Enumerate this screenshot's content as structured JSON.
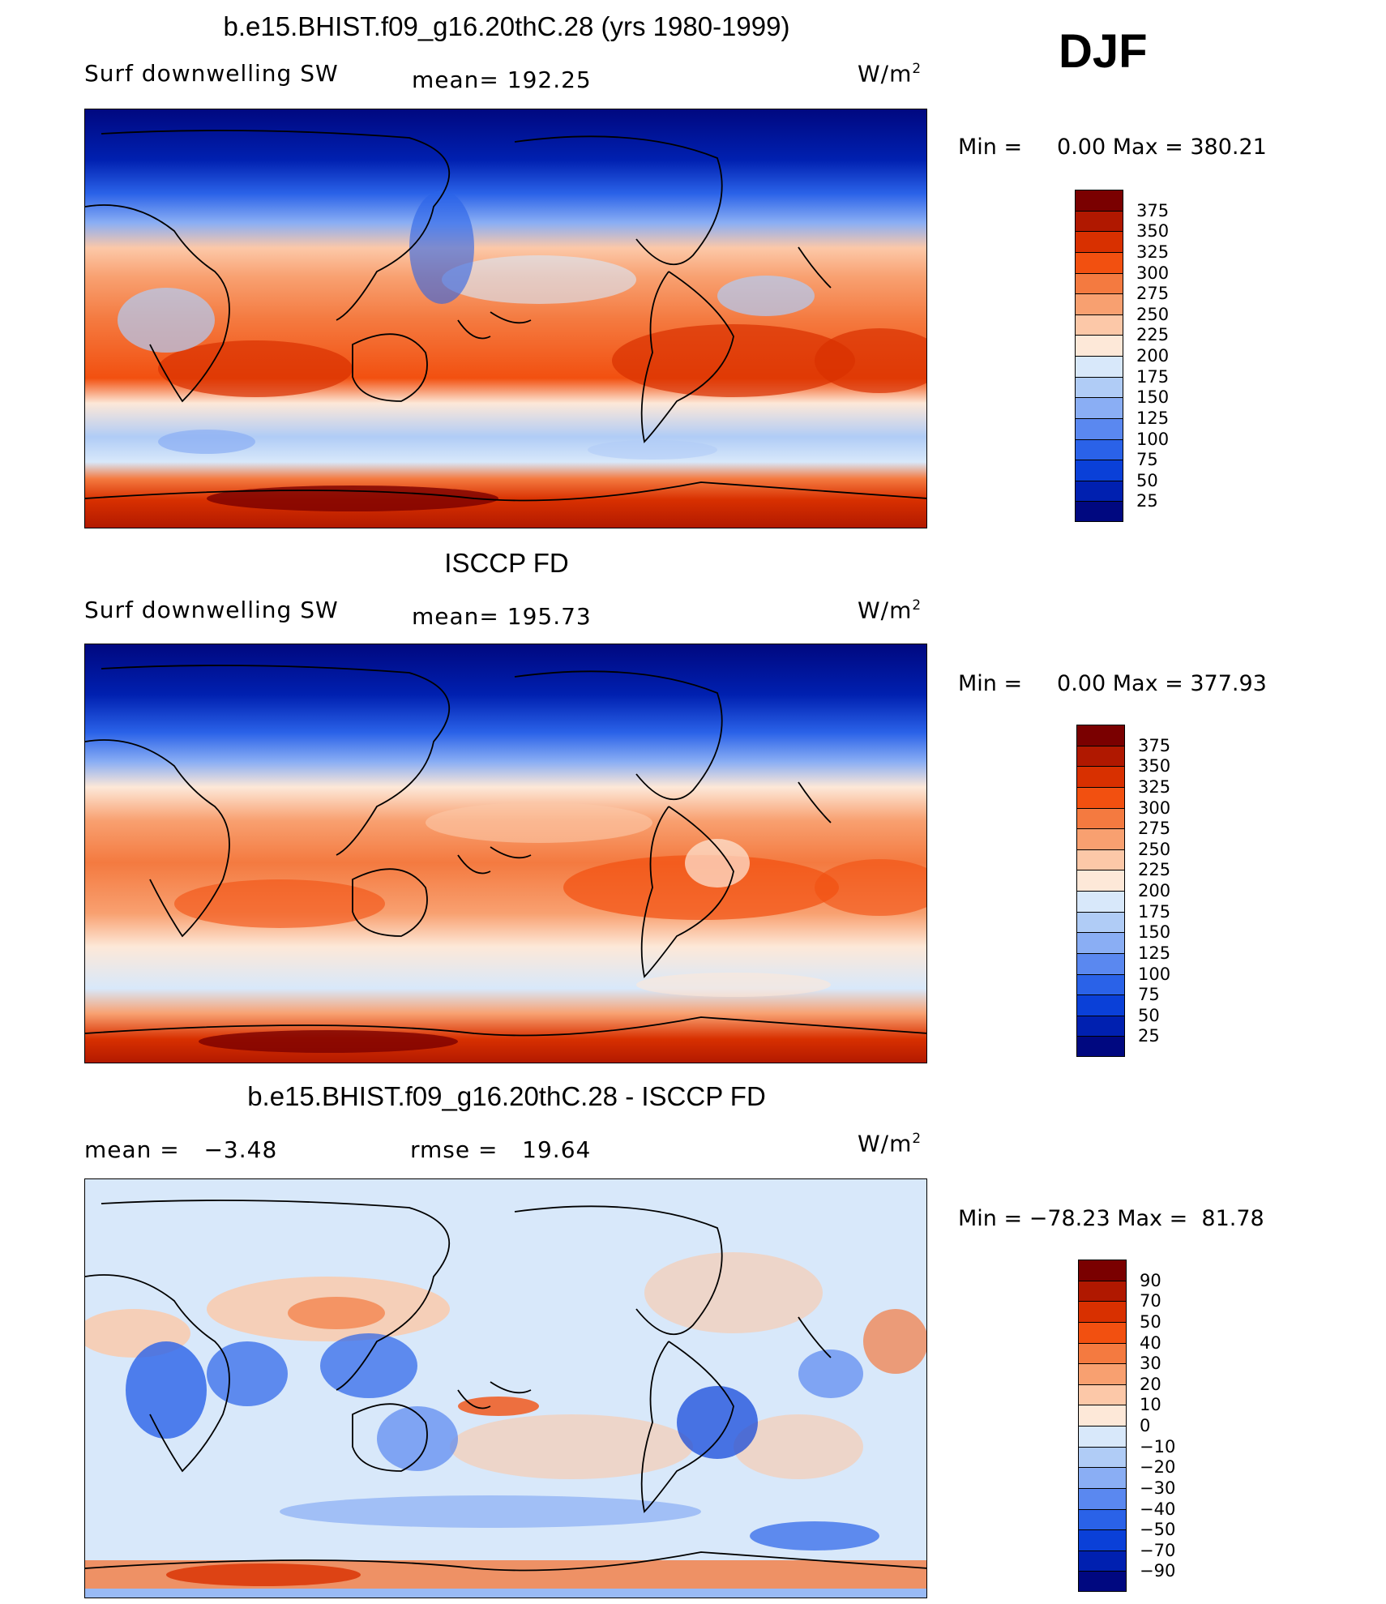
{
  "season": "DJF",
  "panels": [
    {
      "title": "b.e15.BHIST.f09_g16.20thC.28 (yrs 1980-1999)",
      "left_label": "Surf downwelling SW",
      "center_label": "mean= 192.25",
      "units_base": "W/m",
      "units_exp": "2",
      "minmax": "Min =     0.00 Max = 380.21",
      "colorbar": {
        "colors": [
          "#7a0000",
          "#b01800",
          "#d83000",
          "#f25010",
          "#f47a40",
          "#f8a070",
          "#fcc8a8",
          "#fde8d8",
          "#d8e8fa",
          "#b0ccf6",
          "#8aaef4",
          "#5a88f0",
          "#2a62e8",
          "#0a40d8",
          "#0020b0",
          "#000880"
        ],
        "labels": [
          "375",
          "350",
          "325",
          "300",
          "275",
          "250",
          "225",
          "200",
          "175",
          "150",
          "125",
          "100",
          "75",
          "50",
          "25"
        ]
      }
    },
    {
      "title": "ISCCP FD",
      "left_label": "Surf downwelling SW",
      "center_label": "mean= 195.73",
      "units_base": "W/m",
      "units_exp": "2",
      "minmax": "Min =     0.00 Max = 377.93",
      "colorbar": {
        "colors": [
          "#7a0000",
          "#b01800",
          "#d83000",
          "#f25010",
          "#f47a40",
          "#f8a070",
          "#fcc8a8",
          "#fde8d8",
          "#d8e8fa",
          "#b0ccf6",
          "#8aaef4",
          "#5a88f0",
          "#2a62e8",
          "#0a40d8",
          "#0020b0",
          "#000880"
        ],
        "labels": [
          "375",
          "350",
          "325",
          "300",
          "275",
          "250",
          "225",
          "200",
          "175",
          "150",
          "125",
          "100",
          "75",
          "50",
          "25"
        ]
      }
    },
    {
      "title": "b.e15.BHIST.f09_g16.20thC.28 - ISCCP FD",
      "left_label": "mean =   −3.48",
      "center_label": "rmse =   19.64",
      "units_base": "W/m",
      "units_exp": "2",
      "minmax": "Min = −78.23 Max =  81.78",
      "colorbar": {
        "colors": [
          "#7a0000",
          "#b01800",
          "#d83000",
          "#f25010",
          "#f47a40",
          "#f8a070",
          "#fcc8a8",
          "#fde8d8",
          "#d8e8fa",
          "#b0ccf6",
          "#8aaef4",
          "#5a88f0",
          "#2a62e8",
          "#0a40d8",
          "#0020b0",
          "#000880"
        ],
        "labels": [
          "90",
          "70",
          "50",
          "40",
          "30",
          "20",
          "10",
          "0",
          "−10",
          "−20",
          "−30",
          "−40",
          "−50",
          "−70",
          "−90"
        ]
      }
    }
  ]
}
